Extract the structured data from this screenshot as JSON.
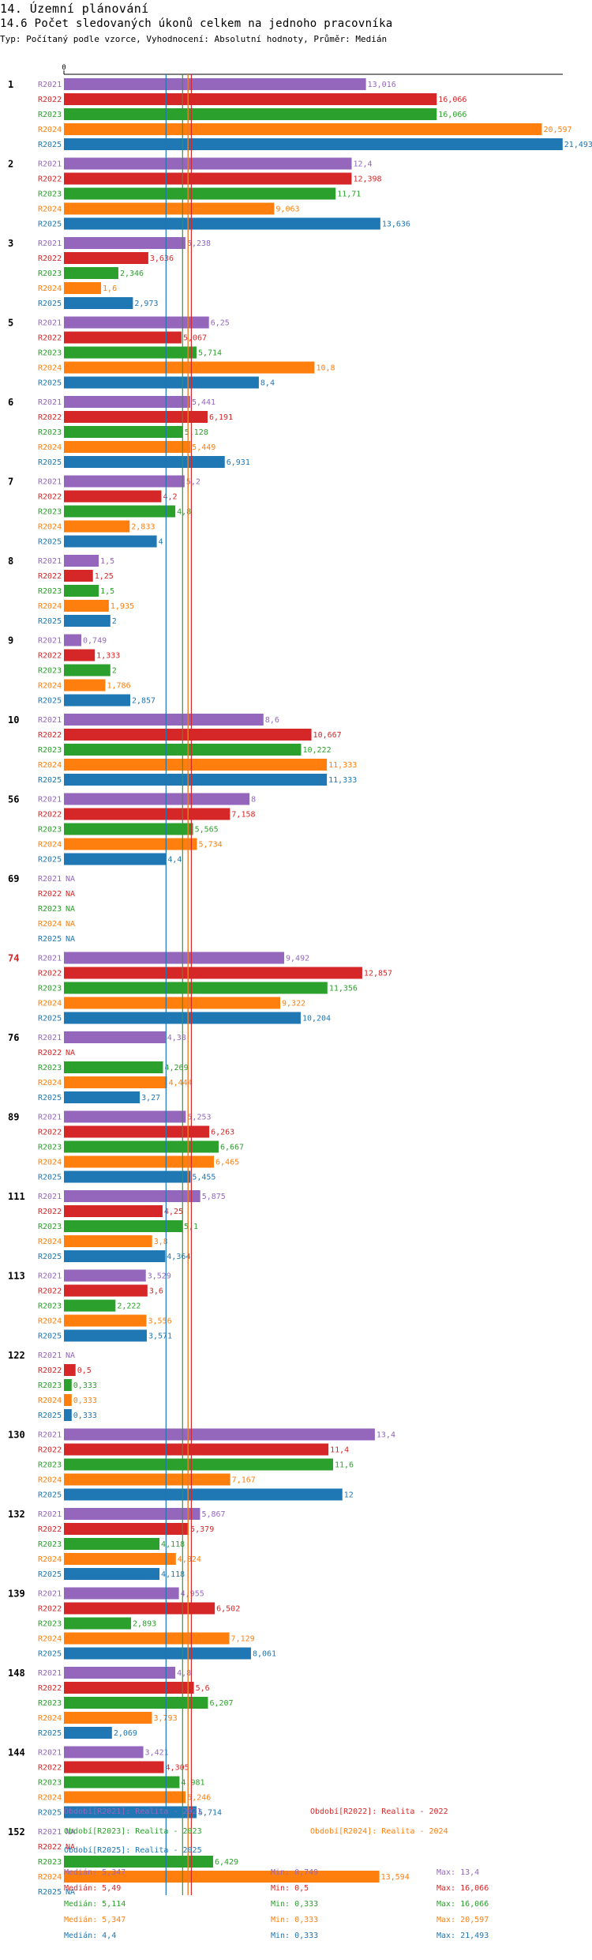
{
  "header": {
    "title": "14. Územní plánování",
    "subtitle": "14.6 Počet sledovaných úkonů celkem na jednoho pracovníka",
    "info": "Typ: Počítaný podle vzorce, Vyhodnocení: Absolutní hodnoty, Průměr: Medián"
  },
  "colors": {
    "R2021": "#9467bd",
    "R2022": "#d62728",
    "R2023": "#2ca02c",
    "R2024": "#ff7f0e",
    "R2025": "#1f77b4",
    "highlight_group": "#d62728",
    "axis": "#000000"
  },
  "chart_data": {
    "type": "bar",
    "orientation": "horizontal",
    "axis_zero_label": "0",
    "xlim": [
      0,
      21.5
    ],
    "highlight_group": "74",
    "series_labels": [
      "R2021",
      "R2022",
      "R2023",
      "R2024",
      "R2025"
    ],
    "groups": [
      {
        "label": "1",
        "values": [
          13.016,
          16.066,
          16.066,
          20.597,
          21.493
        ],
        "labels": [
          "13,016",
          "16,066",
          "16,066",
          "20,597",
          "21,493"
        ]
      },
      {
        "label": "2",
        "values": [
          12.4,
          12.398,
          11.71,
          9.063,
          13.636
        ],
        "labels": [
          "12,4",
          "12,398",
          "11,71",
          "9,063",
          "13,636"
        ]
      },
      {
        "label": "3",
        "values": [
          5.238,
          3.636,
          2.346,
          1.6,
          2.973
        ],
        "labels": [
          "5,238",
          "3,636",
          "2,346",
          "1,6",
          "2,973"
        ]
      },
      {
        "label": "5",
        "values": [
          6.25,
          5.067,
          5.714,
          10.8,
          8.4
        ],
        "labels": [
          "6,25",
          "5,067",
          "5,714",
          "10,8",
          "8,4"
        ]
      },
      {
        "label": "6",
        "values": [
          5.441,
          6.191,
          5.128,
          5.449,
          6.931
        ],
        "labels": [
          "5,441",
          "6,191",
          "5,128",
          "5,449",
          "6,931"
        ]
      },
      {
        "label": "7",
        "values": [
          5.2,
          4.2,
          4.8,
          2.833,
          4.0
        ],
        "labels": [
          "5,2",
          "4,2",
          "4,8",
          "2,833",
          "4"
        ]
      },
      {
        "label": "8",
        "values": [
          1.5,
          1.25,
          1.5,
          1.935,
          2.0
        ],
        "labels": [
          "1,5",
          "1,25",
          "1,5",
          "1,935",
          "2"
        ]
      },
      {
        "label": "9",
        "values": [
          0.749,
          1.333,
          2.0,
          1.786,
          2.857
        ],
        "labels": [
          "0,749",
          "1,333",
          "2",
          "1,786",
          "2,857"
        ]
      },
      {
        "label": "10",
        "values": [
          8.6,
          10.667,
          10.222,
          11.333,
          11.333
        ],
        "labels": [
          "8,6",
          "10,667",
          "10,222",
          "11,333",
          "11,333"
        ]
      },
      {
        "label": "56",
        "values": [
          8.0,
          7.158,
          5.565,
          5.734,
          4.4
        ],
        "labels": [
          "8",
          "7,158",
          "5,565",
          "5,734",
          "4,4"
        ]
      },
      {
        "label": "69",
        "values": [
          null,
          null,
          null,
          null,
          null
        ],
        "labels": [
          "NA",
          "NA",
          "NA",
          "NA",
          "NA"
        ]
      },
      {
        "label": "74",
        "values": [
          9.492,
          12.857,
          11.356,
          9.322,
          10.204
        ],
        "labels": [
          "9,492",
          "12,857",
          "11,356",
          "9,322",
          "10,204"
        ]
      },
      {
        "label": "76",
        "values": [
          4.38,
          null,
          4.269,
          4.444,
          3.27
        ],
        "labels": [
          "4,38",
          "NA",
          "4,269",
          "4,444",
          "3,27"
        ]
      },
      {
        "label": "89",
        "values": [
          5.253,
          6.263,
          6.667,
          6.465,
          5.455
        ],
        "labels": [
          "5,253",
          "6,263",
          "6,667",
          "6,465",
          "5,455"
        ]
      },
      {
        "label": "111",
        "values": [
          5.875,
          4.25,
          5.1,
          3.8,
          4.364
        ],
        "labels": [
          "5,875",
          "4,25",
          "5,1",
          "3,8",
          "4,364"
        ]
      },
      {
        "label": "113",
        "values": [
          3.529,
          3.6,
          2.222,
          3.556,
          3.571
        ],
        "labels": [
          "3,529",
          "3,6",
          "2,222",
          "3,556",
          "3,571"
        ]
      },
      {
        "label": "122",
        "values": [
          null,
          0.5,
          0.333,
          0.333,
          0.333
        ],
        "labels": [
          "NA",
          "0,5",
          "0,333",
          "0,333",
          "0,333"
        ]
      },
      {
        "label": "130",
        "values": [
          13.4,
          11.4,
          11.6,
          7.167,
          12.0
        ],
        "labels": [
          "13,4",
          "11,4",
          "11,6",
          "7,167",
          "12"
        ]
      },
      {
        "label": "132",
        "values": [
          5.867,
          5.379,
          4.118,
          4.824,
          4.118
        ],
        "labels": [
          "5,867",
          "5,379",
          "4,118",
          "4,824",
          "4,118"
        ]
      },
      {
        "label": "139",
        "values": [
          4.955,
          6.502,
          2.893,
          7.129,
          8.061
        ],
        "labels": [
          "4,955",
          "6,502",
          "2,893",
          "7,129",
          "8,061"
        ]
      },
      {
        "label": "148",
        "values": [
          4.8,
          5.6,
          6.207,
          3.793,
          2.069
        ],
        "labels": [
          "4,8",
          "5,6",
          "6,207",
          "3,793",
          "2,069"
        ]
      },
      {
        "label": "144",
        "values": [
          3.421,
          4.305,
          4.981,
          5.246,
          5.714
        ],
        "labels": [
          "3,421",
          "4,305",
          "4,981",
          "5,246",
          "5,714"
        ]
      },
      {
        "label": "152",
        "values": [
          null,
          null,
          6.429,
          13.594,
          null
        ],
        "labels": [
          "NA",
          "NA",
          "6,429",
          "13,594",
          "NA"
        ]
      }
    ],
    "median_lines": [
      5.347,
      5.49,
      5.114,
      5.347,
      4.4
    ],
    "legend": [
      "Období[R2021]: Realita - 2021",
      "Období[R2022]: Realita - 2022",
      "Období[R2023]: Realita - 2023",
      "Období[R2024]: Realita - 2024",
      "Období[R2025]: Realita - 2025"
    ],
    "stats": [
      {
        "median": "Medián: 5,347",
        "min": "Min: 0,749",
        "max": "Max: 13,4"
      },
      {
        "median": "Medián: 5,49",
        "min": "Min: 0,5",
        "max": "Max: 16,066"
      },
      {
        "median": "Medián: 5,114",
        "min": "Min: 0,333",
        "max": "Max: 16,066"
      },
      {
        "median": "Medián: 5,347",
        "min": "Min: 0,333",
        "max": "Max: 20,597"
      },
      {
        "median": "Medián: 4,4",
        "min": "Min: 0,333",
        "max": "Max: 21,493"
      }
    ]
  }
}
